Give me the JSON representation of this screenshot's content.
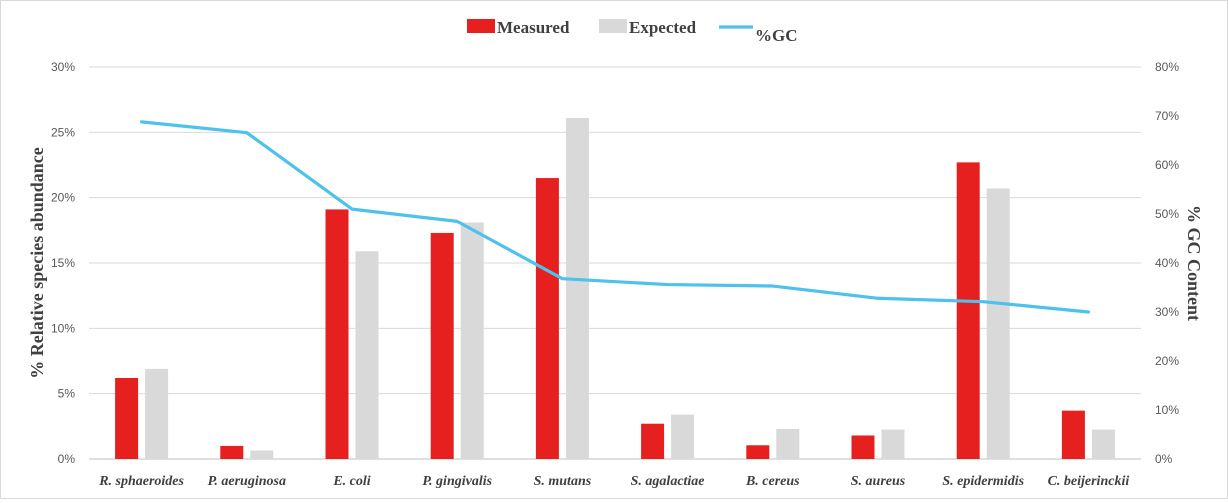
{
  "chart_data": {
    "type": "bar",
    "categories": [
      "R. sphaeroides",
      "P. aeruginosa",
      "E. coli",
      "P. gingivalis",
      "S. mutans",
      "S. agalactiae",
      "B. cereus",
      "S. aureus",
      "S. epidermidis",
      "C. beijerinckii"
    ],
    "series": [
      {
        "name": "Measured",
        "type": "bar",
        "axis": "left",
        "color": "#e61f1f",
        "values": [
          6.2,
          1.0,
          19.1,
          17.3,
          21.5,
          2.7,
          1.05,
          1.8,
          22.7,
          3.7
        ]
      },
      {
        "name": "Expected",
        "type": "bar",
        "axis": "left",
        "color": "#d9d9d9",
        "values": [
          6.9,
          0.65,
          15.9,
          18.1,
          26.1,
          3.4,
          2.3,
          2.25,
          20.7,
          2.25
        ]
      },
      {
        "name": "%GC",
        "type": "line",
        "axis": "right",
        "color": "#4ec1ec",
        "values": [
          68.8,
          66.6,
          51.0,
          48.5,
          36.8,
          35.6,
          35.3,
          32.8,
          32.1,
          30.0
        ]
      }
    ],
    "ylabel": "% Relative species abundance",
    "y2label": "% GC Content",
    "ylim": [
      0,
      30
    ],
    "y2lim": [
      0,
      80
    ],
    "yticks": [
      "0%",
      "5%",
      "10%",
      "15%",
      "20%",
      "25%",
      "30%"
    ],
    "y2ticks": [
      "0%",
      "10%",
      "20%",
      "30%",
      "40%",
      "50%",
      "60%",
      "70%",
      "80%"
    ],
    "legend_position": "top-center",
    "grid": true
  }
}
